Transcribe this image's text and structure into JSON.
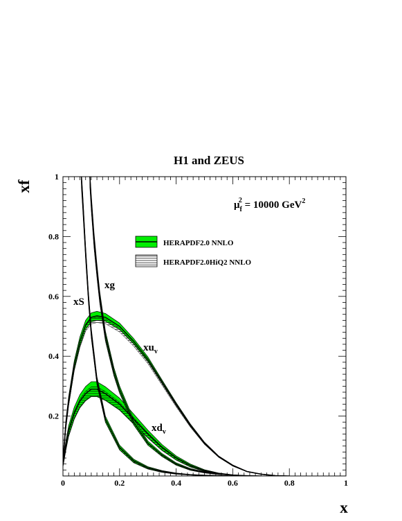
{
  "chart_data": {
    "type": "line",
    "title": "H1 and ZEUS",
    "xlabel": "x",
    "ylabel": "xf",
    "xlim": [
      0,
      1
    ],
    "ylim": [
      0,
      1
    ],
    "xticks": [
      "0",
      "0.2",
      "0.4",
      "0.6",
      "0.8",
      "1"
    ],
    "yticks": [
      "0.2",
      "0.4",
      "0.6",
      "0.8",
      "1"
    ],
    "scale_label": {
      "prefix": "μ",
      "sub": "f",
      "sup": "2",
      "rest": " = 10000 GeV",
      "sup2": "2"
    },
    "legend": [
      {
        "label": "HERAPDF2.0 NNLO",
        "style": "green-band",
        "color": "#00ee00"
      },
      {
        "label": "HERAPDF2.0HiQ2 NNLO",
        "style": "hatched-band",
        "color": "#000000"
      }
    ],
    "curve_labels": [
      {
        "base": "xS",
        "sub": ""
      },
      {
        "base": "xg",
        "sub": ""
      },
      {
        "base": "xu",
        "sub": "v"
      },
      {
        "base": "xd",
        "sub": "v"
      }
    ],
    "series": [
      {
        "name": "xu_v",
        "x": [
          0.0,
          0.01,
          0.02,
          0.04,
          0.06,
          0.08,
          0.1,
          0.12,
          0.15,
          0.2,
          0.25,
          0.3,
          0.35,
          0.4,
          0.45,
          0.5,
          0.55,
          0.6,
          0.65,
          0.7,
          0.75,
          0.8
        ],
        "values": [
          0.05,
          0.17,
          0.25,
          0.37,
          0.45,
          0.505,
          0.53,
          0.535,
          0.53,
          0.5,
          0.45,
          0.39,
          0.315,
          0.24,
          0.17,
          0.11,
          0.065,
          0.035,
          0.015,
          0.006,
          0.001,
          0.0
        ],
        "band": [
          0.012,
          0.015,
          0.015,
          0.015,
          0.015,
          0.015,
          0.015,
          0.015,
          0.013,
          0.011,
          0.009,
          0.008,
          0.006,
          0.005,
          0.004,
          0.003,
          0.002,
          0.002,
          0.001,
          0.001,
          0.001,
          0.0
        ]
      },
      {
        "name": "xd_v",
        "x": [
          0.0,
          0.01,
          0.02,
          0.04,
          0.06,
          0.08,
          0.1,
          0.12,
          0.15,
          0.2,
          0.25,
          0.3,
          0.35,
          0.4,
          0.45,
          0.5,
          0.55,
          0.6,
          0.65,
          0.7
        ],
        "values": [
          0.04,
          0.1,
          0.15,
          0.21,
          0.25,
          0.275,
          0.29,
          0.29,
          0.275,
          0.24,
          0.19,
          0.14,
          0.095,
          0.06,
          0.035,
          0.018,
          0.008,
          0.003,
          0.001,
          0.0
        ],
        "band": [
          0.01,
          0.015,
          0.018,
          0.02,
          0.022,
          0.024,
          0.025,
          0.025,
          0.023,
          0.02,
          0.017,
          0.013,
          0.01,
          0.007,
          0.005,
          0.003,
          0.002,
          0.001,
          0.0,
          0.0
        ]
      },
      {
        "name": "xS",
        "x": [
          0.065,
          0.07,
          0.08,
          0.09,
          0.1,
          0.12,
          0.15,
          0.2,
          0.25,
          0.3,
          0.35,
          0.4,
          0.45,
          0.5,
          0.55,
          0.6
        ],
        "values": [
          1.0,
          0.92,
          0.75,
          0.6,
          0.48,
          0.32,
          0.19,
          0.095,
          0.05,
          0.027,
          0.015,
          0.008,
          0.004,
          0.002,
          0.001,
          0.0
        ],
        "band": [
          0.02,
          0.02,
          0.018,
          0.016,
          0.014,
          0.012,
          0.01,
          0.008,
          0.006,
          0.004,
          0.003,
          0.002,
          0.001,
          0.001,
          0.0,
          0.0
        ]
      },
      {
        "name": "xg",
        "x": [
          0.095,
          0.1,
          0.11,
          0.12,
          0.13,
          0.15,
          0.18,
          0.2,
          0.25,
          0.3,
          0.35,
          0.4,
          0.45,
          0.5,
          0.55,
          0.6,
          0.65
        ],
        "values": [
          1.0,
          0.92,
          0.79,
          0.69,
          0.6,
          0.47,
          0.35,
          0.29,
          0.18,
          0.11,
          0.07,
          0.04,
          0.022,
          0.012,
          0.006,
          0.003,
          0.0
        ],
        "band": [
          0.02,
          0.02,
          0.02,
          0.018,
          0.016,
          0.014,
          0.012,
          0.011,
          0.009,
          0.007,
          0.005,
          0.004,
          0.003,
          0.002,
          0.001,
          0.0,
          0.0
        ]
      }
    ]
  }
}
